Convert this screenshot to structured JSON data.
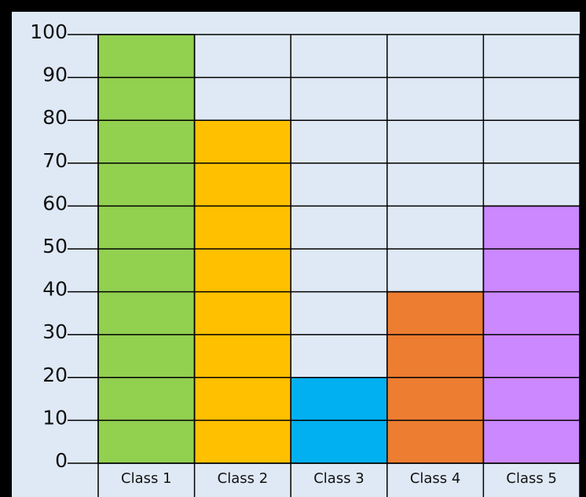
{
  "chart_data": {
    "type": "bar",
    "categories": [
      "Class 1",
      "Class 2",
      "Class 3",
      "Class 4",
      "Class 5"
    ],
    "values": [
      100,
      80,
      20,
      40,
      60
    ],
    "colors": [
      "#92d050",
      "#ffc000",
      "#00b0f0",
      "#ed7d31",
      "#cc88ff"
    ],
    "ylim": [
      0,
      100
    ],
    "yticks": [
      0,
      10,
      20,
      30,
      40,
      50,
      60,
      70,
      80,
      90,
      100
    ],
    "grid": true
  }
}
